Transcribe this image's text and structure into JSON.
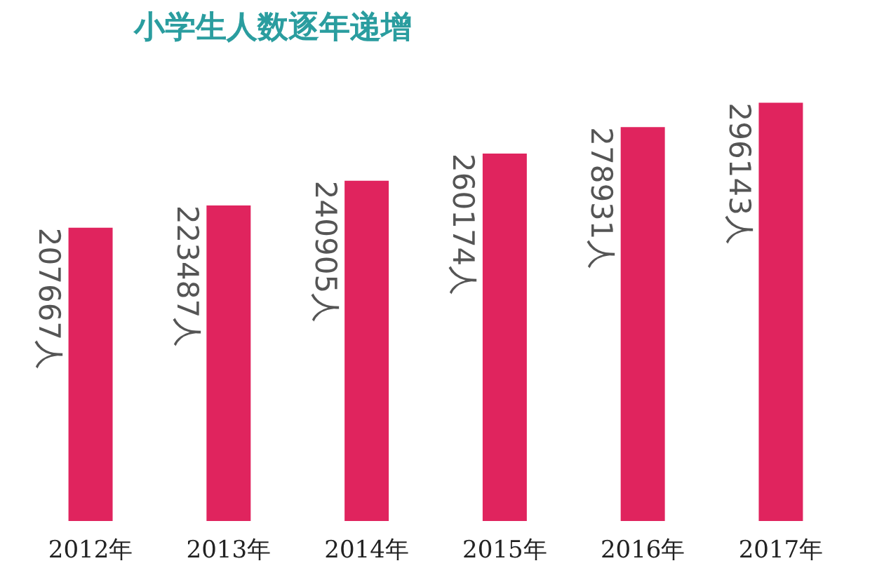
{
  "chart_data": {
    "type": "bar",
    "title": "小学生人数逐年递增",
    "categories": [
      "2012年",
      "2013年",
      "2014年",
      "2015年",
      "2016年",
      "2017年"
    ],
    "values": [
      207667,
      223487,
      240905,
      260174,
      278931,
      296143
    ],
    "color": "#e0245e",
    "value_labels": [
      "207667人",
      "223487人",
      "240905人",
      "260174人",
      "278931人",
      "296143人"
    ]
  }
}
